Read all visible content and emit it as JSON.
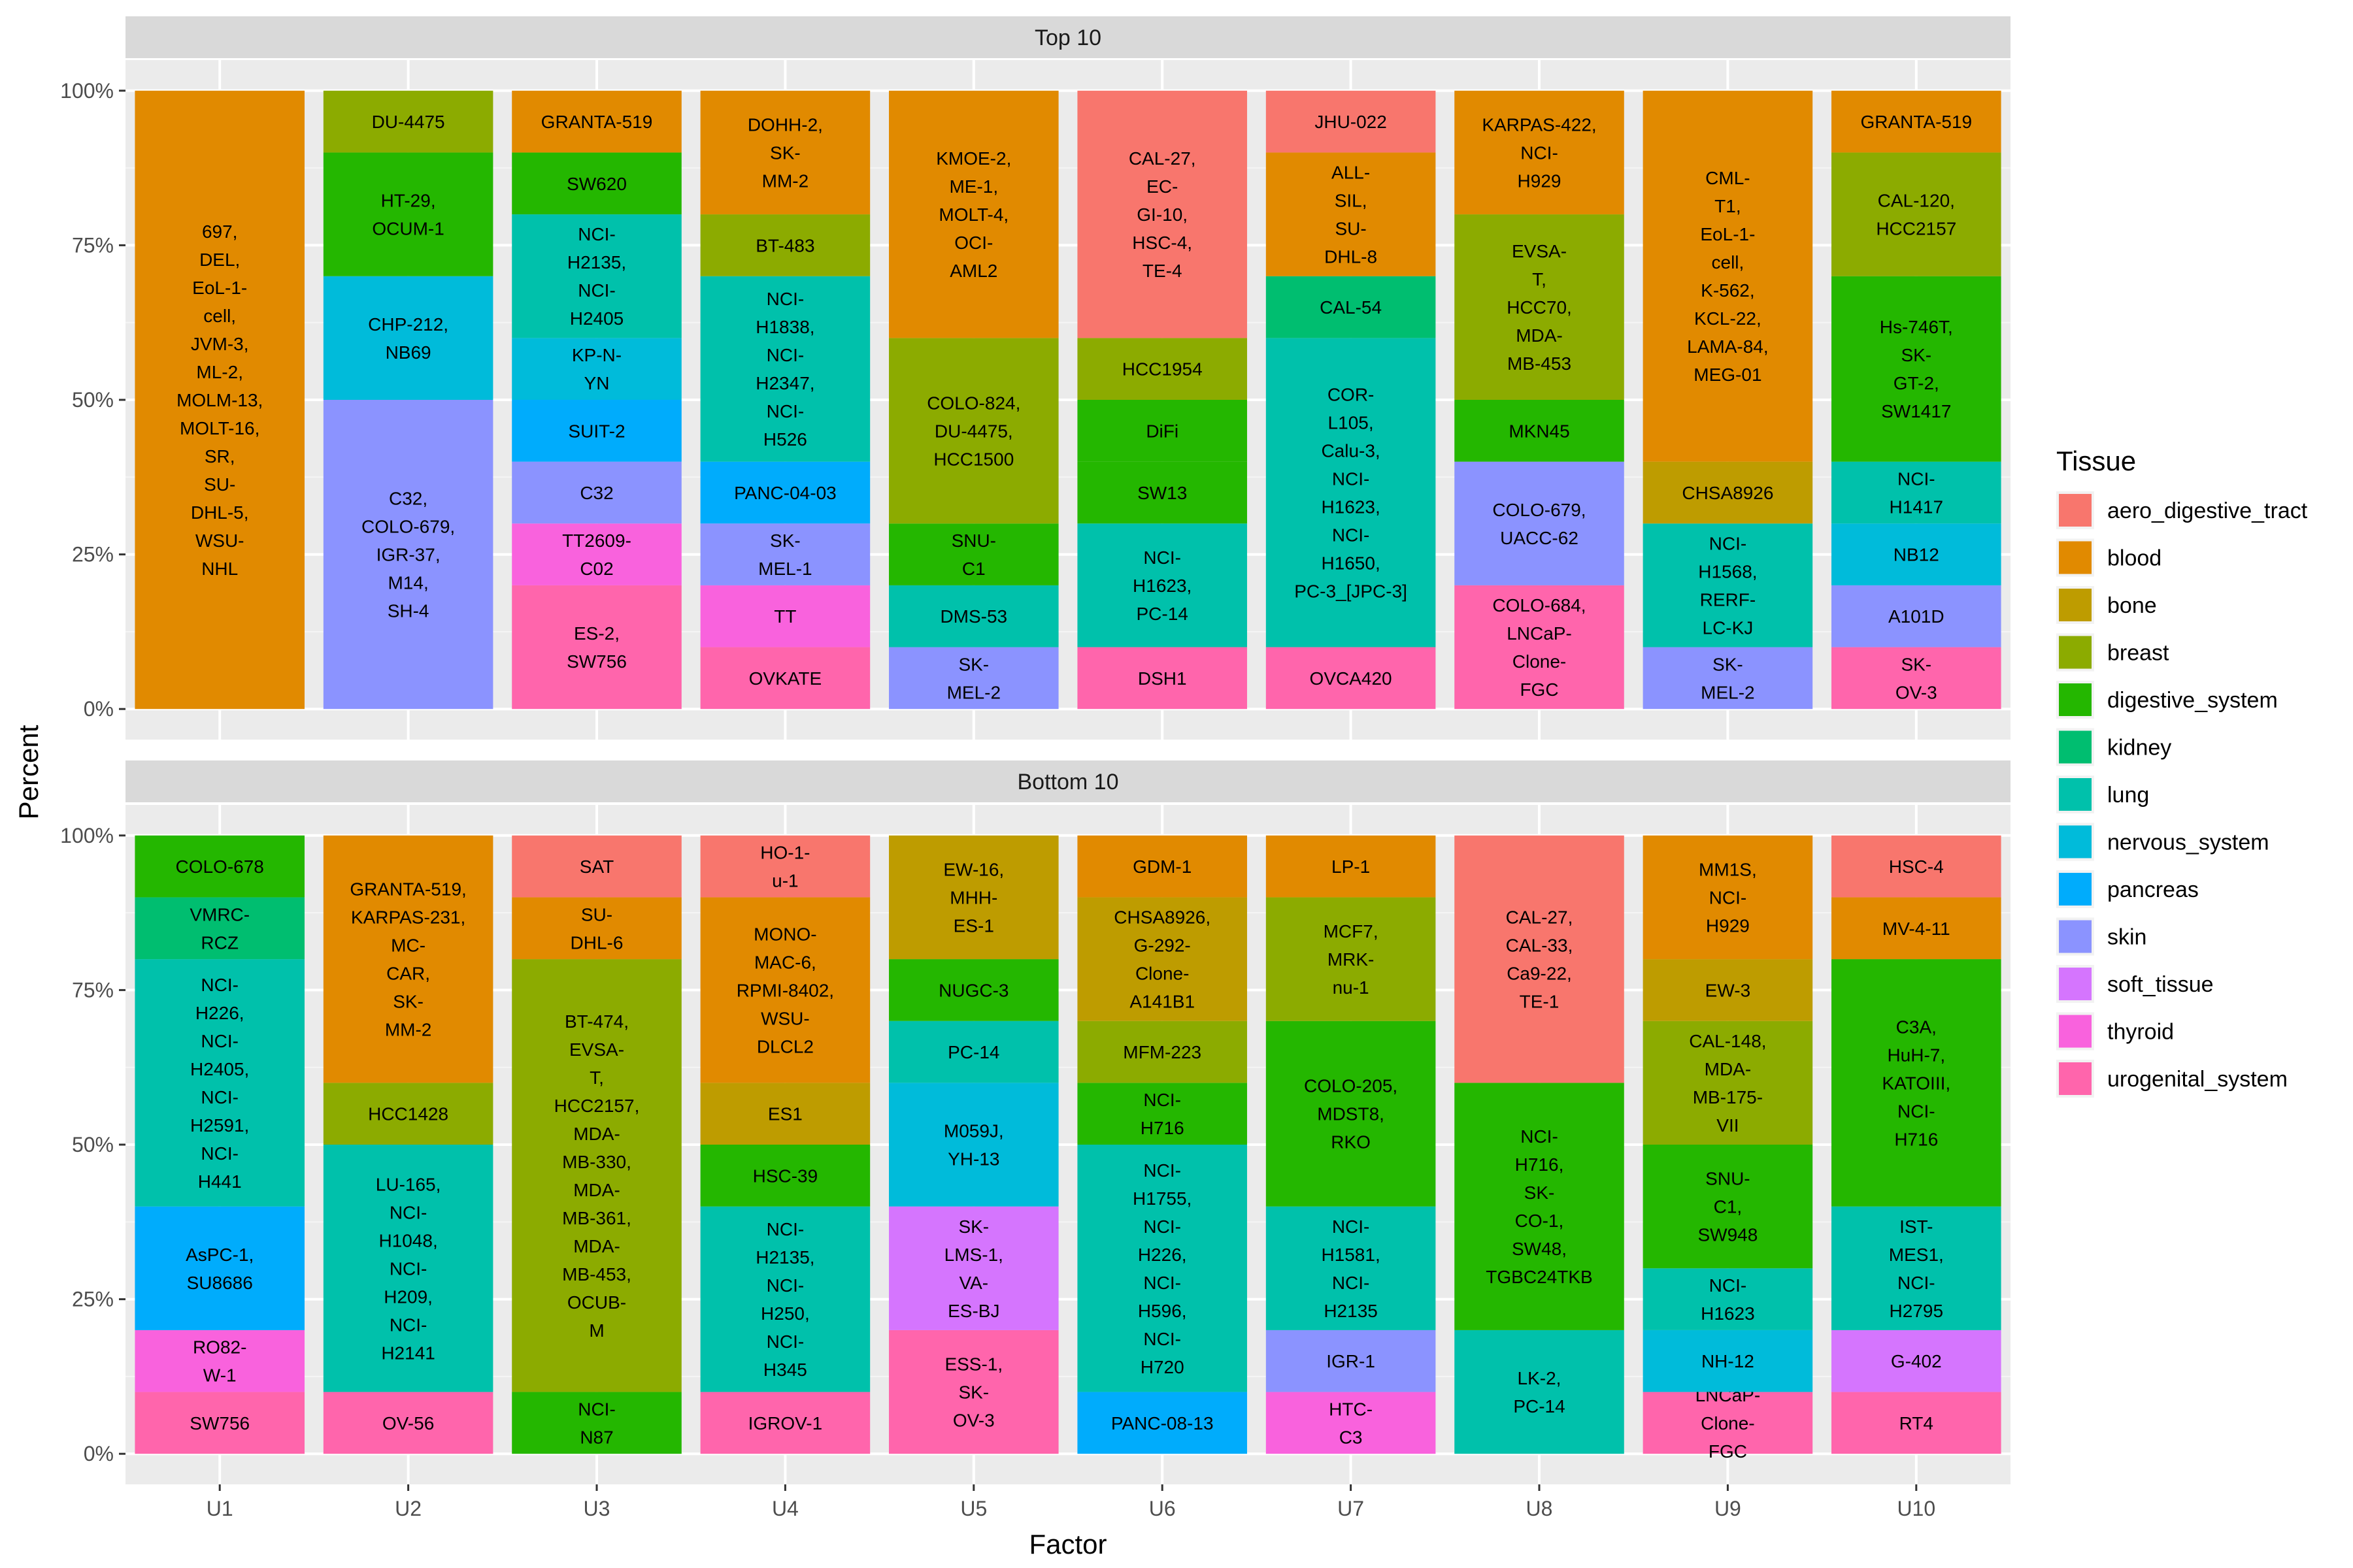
{
  "chart_data": {
    "type": "bar",
    "stacked": true,
    "xlabel": "Factor",
    "ylabel": "Percent",
    "ylim": [
      0,
      100
    ],
    "y_ticks": [
      0,
      25,
      50,
      75,
      100
    ],
    "y_tick_labels": [
      "0%",
      "25%",
      "50%",
      "75%",
      "100%"
    ],
    "categories": [
      "U1",
      "U2",
      "U3",
      "U4",
      "U5",
      "U6",
      "U7",
      "U8",
      "U9",
      "U10"
    ],
    "legend": {
      "title": "Tissue",
      "position": "right",
      "entries": [
        {
          "name": "aero_digestive_tract",
          "color": "#F8766D"
        },
        {
          "name": "blood",
          "color": "#E18A00"
        },
        {
          "name": "bone",
          "color": "#BE9C00"
        },
        {
          "name": "breast",
          "color": "#8CAB00"
        },
        {
          "name": "digestive_system",
          "color": "#24B700"
        },
        {
          "name": "kidney",
          "color": "#00BE70"
        },
        {
          "name": "lung",
          "color": "#00C1AB"
        },
        {
          "name": "nervous_system",
          "color": "#00BBDA"
        },
        {
          "name": "pancreas",
          "color": "#00ACFC"
        },
        {
          "name": "skin",
          "color": "#8B93FF"
        },
        {
          "name": "soft_tissue",
          "color": "#D575FE"
        },
        {
          "name": "thyroid",
          "color": "#F962DD"
        },
        {
          "name": "urogenital_system",
          "color": "#FF65AC"
        }
      ]
    },
    "panels": [
      {
        "title": "Top 10",
        "bars": [
          {
            "category": "U1",
            "segments": [
              {
                "tissue": "blood",
                "value": 100,
                "label": "697,\nDEL,\nEoL-1-\ncell,\nJVM-3,\nML-2,\nMOLM-13,\nMOLT-16,\nSR,\nSU-\nDHL-5,\nWSU-\nNHL"
              }
            ]
          },
          {
            "category": "U2",
            "segments": [
              {
                "tissue": "skin",
                "value": 50,
                "label": "C32,\nCOLO-679,\nIGR-37,\nM14,\nSH-4"
              },
              {
                "tissue": "nervous_system",
                "value": 20,
                "label": "CHP-212,\nNB69"
              },
              {
                "tissue": "digestive_system",
                "value": 20,
                "label": "HT-29,\nOCUM-1"
              },
              {
                "tissue": "breast",
                "value": 10,
                "label": "DU-4475"
              }
            ]
          },
          {
            "category": "U3",
            "segments": [
              {
                "tissue": "urogenital_system",
                "value": 20,
                "label": "ES-2,\nSW756"
              },
              {
                "tissue": "thyroid",
                "value": 10,
                "label": "TT2609-\nC02"
              },
              {
                "tissue": "skin",
                "value": 10,
                "label": "C32"
              },
              {
                "tissue": "pancreas",
                "value": 10,
                "label": "SUIT-2"
              },
              {
                "tissue": "nervous_system",
                "value": 10,
                "label": "KP-N-\nYN"
              },
              {
                "tissue": "lung",
                "value": 20,
                "label": "NCI-\nH2135,\nNCI-\nH2405"
              },
              {
                "tissue": "digestive_system",
                "value": 10,
                "label": "SW620"
              },
              {
                "tissue": "blood",
                "value": 10,
                "label": "GRANTA-519"
              }
            ]
          },
          {
            "category": "U4",
            "segments": [
              {
                "tissue": "urogenital_system",
                "value": 10,
                "label": "OVKATE"
              },
              {
                "tissue": "thyroid",
                "value": 10,
                "label": "TT"
              },
              {
                "tissue": "skin",
                "value": 10,
                "label": "SK-\nMEL-1"
              },
              {
                "tissue": "pancreas",
                "value": 10,
                "label": "PANC-04-03"
              },
              {
                "tissue": "lung",
                "value": 30,
                "label": "NCI-\nH1838,\nNCI-\nH2347,\nNCI-\nH526"
              },
              {
                "tissue": "breast",
                "value": 10,
                "label": "BT-483"
              },
              {
                "tissue": "blood",
                "value": 20,
                "label": "DOHH-2,\nSK-\nMM-2"
              }
            ]
          },
          {
            "category": "U5",
            "segments": [
              {
                "tissue": "skin",
                "value": 10,
                "label": "SK-\nMEL-2"
              },
              {
                "tissue": "lung",
                "value": 10,
                "label": "DMS-53"
              },
              {
                "tissue": "digestive_system",
                "value": 10,
                "label": "SNU-\nC1"
              },
              {
                "tissue": "breast",
                "value": 30,
                "label": "COLO-824,\nDU-4475,\nHCC1500"
              },
              {
                "tissue": "blood",
                "value": 40,
                "label": "KMOE-2,\nME-1,\nMOLT-4,\nOCI-\nAML2"
              }
            ]
          },
          {
            "category": "U6",
            "segments": [
              {
                "tissue": "urogenital_system",
                "value": 10,
                "label": "DSH1"
              },
              {
                "tissue": "lung",
                "value": 20,
                "label": "NCI-\nH1623,\nPC-14"
              },
              {
                "tissue": "digestive_system",
                "value": 10,
                "label": "SW13"
              },
              {
                "tissue": "digestive_system",
                "value": 10,
                "label": "DiFi"
              },
              {
                "tissue": "breast",
                "value": 10,
                "label": "HCC1954"
              },
              {
                "tissue": "aero_digestive_tract",
                "value": 40,
                "label": "CAL-27,\nEC-\nGI-10,\nHSC-4,\nTE-4"
              }
            ]
          },
          {
            "category": "U7",
            "segments": [
              {
                "tissue": "urogenital_system",
                "value": 10,
                "label": "OVCA420"
              },
              {
                "tissue": "lung",
                "value": 50,
                "label": "COR-\nL105,\nCalu-3,\nNCI-\nH1623,\nNCI-\nH1650,\nPC-3_[JPC-3]"
              },
              {
                "tissue": "kidney",
                "value": 10,
                "label": "CAL-54"
              },
              {
                "tissue": "blood",
                "value": 20,
                "label": "ALL-\nSIL,\nSU-\nDHL-8"
              },
              {
                "tissue": "aero_digestive_tract",
                "value": 10,
                "label": "JHU-022"
              }
            ]
          },
          {
            "category": "U8",
            "segments": [
              {
                "tissue": "urogenital_system",
                "value": 20,
                "label": "COLO-684,\nLNCaP-\nClone-\nFGC"
              },
              {
                "tissue": "skin",
                "value": 20,
                "label": "COLO-679,\nUACC-62"
              },
              {
                "tissue": "digestive_system",
                "value": 10,
                "label": "MKN45"
              },
              {
                "tissue": "breast",
                "value": 30,
                "label": "EVSA-\nT,\nHCC70,\nMDA-\nMB-453"
              },
              {
                "tissue": "blood",
                "value": 20,
                "label": "KARPAS-422,\nNCI-\nH929"
              }
            ]
          },
          {
            "category": "U9",
            "segments": [
              {
                "tissue": "skin",
                "value": 10,
                "label": "SK-\nMEL-2"
              },
              {
                "tissue": "lung",
                "value": 20,
                "label": "NCI-\nH1568,\nRERF-\nLC-KJ"
              },
              {
                "tissue": "bone",
                "value": 10,
                "label": "CHSA8926"
              },
              {
                "tissue": "blood",
                "value": 60,
                "label": "CML-\nT1,\nEoL-1-\ncell,\nK-562,\nKCL-22,\nLAMA-84,\nMEG-01"
              }
            ]
          },
          {
            "category": "U10",
            "segments": [
              {
                "tissue": "urogenital_system",
                "value": 10,
                "label": "SK-\nOV-3"
              },
              {
                "tissue": "skin",
                "value": 10,
                "label": "A101D"
              },
              {
                "tissue": "nervous_system",
                "value": 10,
                "label": "NB12"
              },
              {
                "tissue": "lung",
                "value": 10,
                "label": "NCI-\nH1417"
              },
              {
                "tissue": "digestive_system",
                "value": 30,
                "label": "Hs-746T,\nSK-\nGT-2,\nSW1417"
              },
              {
                "tissue": "breast",
                "value": 20,
                "label": "CAL-120,\nHCC2157"
              },
              {
                "tissue": "blood",
                "value": 10,
                "label": "GRANTA-519"
              }
            ]
          }
        ]
      },
      {
        "title": "Bottom 10",
        "bars": [
          {
            "category": "U1",
            "segments": [
              {
                "tissue": "urogenital_system",
                "value": 10,
                "label": "SW756"
              },
              {
                "tissue": "thyroid",
                "value": 10,
                "label": "RO82-\nW-1"
              },
              {
                "tissue": "pancreas",
                "value": 20,
                "label": "AsPC-1,\nSU8686"
              },
              {
                "tissue": "lung",
                "value": 40,
                "label": "NCI-\nH226,\nNCI-\nH2405,\nNCI-\nH2591,\nNCI-\nH441"
              },
              {
                "tissue": "kidney",
                "value": 10,
                "label": "VMRC-\nRCZ"
              },
              {
                "tissue": "digestive_system",
                "value": 10,
                "label": "COLO-678"
              }
            ]
          },
          {
            "category": "U2",
            "segments": [
              {
                "tissue": "urogenital_system",
                "value": 10,
                "label": "OV-56"
              },
              {
                "tissue": "lung",
                "value": 40,
                "label": "LU-165,\nNCI-\nH1048,\nNCI-\nH209,\nNCI-\nH2141"
              },
              {
                "tissue": "breast",
                "value": 10,
                "label": "HCC1428"
              },
              {
                "tissue": "blood",
                "value": 40,
                "label": "GRANTA-519,\nKARPAS-231,\nMC-\nCAR,\nSK-\nMM-2"
              }
            ]
          },
          {
            "category": "U3",
            "segments": [
              {
                "tissue": "digestive_system",
                "value": 10,
                "label": "NCI-\nN87"
              },
              {
                "tissue": "breast",
                "value": 70,
                "label": "BT-474,\nEVSA-\nT,\nHCC2157,\nMDA-\nMB-330,\nMDA-\nMB-361,\nMDA-\nMB-453,\nOCUB-\nM"
              },
              {
                "tissue": "blood",
                "value": 10,
                "label": "SU-\nDHL-6"
              },
              {
                "tissue": "aero_digestive_tract",
                "value": 10,
                "label": "SAT"
              }
            ]
          },
          {
            "category": "U4",
            "segments": [
              {
                "tissue": "urogenital_system",
                "value": 10,
                "label": "IGROV-1"
              },
              {
                "tissue": "lung",
                "value": 30,
                "label": "NCI-\nH2135,\nNCI-\nH250,\nNCI-\nH345"
              },
              {
                "tissue": "digestive_system",
                "value": 10,
                "label": "HSC-39"
              },
              {
                "tissue": "bone",
                "value": 10,
                "label": "ES1"
              },
              {
                "tissue": "blood",
                "value": 30,
                "label": "MONO-\nMAC-6,\nRPMI-8402,\nWSU-\nDLCL2"
              },
              {
                "tissue": "aero_digestive_tract",
                "value": 10,
                "label": "HO-1-\nu-1"
              }
            ]
          },
          {
            "category": "U5",
            "segments": [
              {
                "tissue": "urogenital_system",
                "value": 20,
                "label": "ESS-1,\nSK-\nOV-3"
              },
              {
                "tissue": "soft_tissue",
                "value": 20,
                "label": "SK-\nLMS-1,\nVA-\nES-BJ"
              },
              {
                "tissue": "nervous_system",
                "value": 20,
                "label": "M059J,\nYH-13"
              },
              {
                "tissue": "lung",
                "value": 10,
                "label": "PC-14"
              },
              {
                "tissue": "digestive_system",
                "value": 10,
                "label": "NUGC-3"
              },
              {
                "tissue": "bone",
                "value": 20,
                "label": "EW-16,\nMHH-\nES-1"
              }
            ]
          },
          {
            "category": "U6",
            "segments": [
              {
                "tissue": "pancreas",
                "value": 10,
                "label": "PANC-08-13"
              },
              {
                "tissue": "lung",
                "value": 40,
                "label": "NCI-\nH1755,\nNCI-\nH226,\nNCI-\nH596,\nNCI-\nH720"
              },
              {
                "tissue": "digestive_system",
                "value": 10,
                "label": "NCI-\nH716"
              },
              {
                "tissue": "breast",
                "value": 10,
                "label": "MFM-223"
              },
              {
                "tissue": "bone",
                "value": 20,
                "label": "CHSA8926,\nG-292-\nClone-\nA141B1"
              },
              {
                "tissue": "blood",
                "value": 10,
                "label": "GDM-1"
              }
            ]
          },
          {
            "category": "U7",
            "segments": [
              {
                "tissue": "thyroid",
                "value": 10,
                "label": "HTC-\nC3"
              },
              {
                "tissue": "skin",
                "value": 10,
                "label": "IGR-1"
              },
              {
                "tissue": "lung",
                "value": 20,
                "label": "NCI-\nH1581,\nNCI-\nH2135"
              },
              {
                "tissue": "digestive_system",
                "value": 30,
                "label": "COLO-205,\nMDST8,\nRKO"
              },
              {
                "tissue": "breast",
                "value": 20,
                "label": "MCF7,\nMRK-\nnu-1"
              },
              {
                "tissue": "blood",
                "value": 10,
                "label": "LP-1"
              }
            ]
          },
          {
            "category": "U8",
            "segments": [
              {
                "tissue": "lung",
                "value": 20,
                "label": "LK-2,\nPC-14"
              },
              {
                "tissue": "digestive_system",
                "value": 40,
                "label": "NCI-\nH716,\nSK-\nCO-1,\nSW48,\nTGBC24TKB"
              },
              {
                "tissue": "aero_digestive_tract",
                "value": 40,
                "label": "CAL-27,\nCAL-33,\nCa9-22,\nTE-1"
              }
            ]
          },
          {
            "category": "U9",
            "segments": [
              {
                "tissue": "urogenital_system",
                "value": 10,
                "label": "LNCaP-\nClone-\nFGC"
              },
              {
                "tissue": "nervous_system",
                "value": 10,
                "label": "NH-12"
              },
              {
                "tissue": "lung",
                "value": 10,
                "label": "NCI-\nH1623"
              },
              {
                "tissue": "digestive_system",
                "value": 20,
                "label": "SNU-\nC1,\nSW948"
              },
              {
                "tissue": "breast",
                "value": 20,
                "label": "CAL-148,\nMDA-\nMB-175-\nVII"
              },
              {
                "tissue": "bone",
                "value": 10,
                "label": "EW-3"
              },
              {
                "tissue": "blood",
                "value": 20,
                "label": "MM1S,\nNCI-\nH929"
              }
            ]
          },
          {
            "category": "U10",
            "segments": [
              {
                "tissue": "urogenital_system",
                "value": 10,
                "label": "RT4"
              },
              {
                "tissue": "soft_tissue",
                "value": 10,
                "label": "G-402"
              },
              {
                "tissue": "lung",
                "value": 20,
                "label": "IST-\nMES1,\nNCI-\nH2795"
              },
              {
                "tissue": "digestive_system",
                "value": 40,
                "label": "C3A,\nHuH-7,\nKATOIII,\nNCI-\nH716"
              },
              {
                "tissue": "blood",
                "value": 10,
                "label": "MV-4-11"
              },
              {
                "tissue": "aero_digestive_tract",
                "value": 10,
                "label": "HSC-4"
              }
            ]
          }
        ]
      }
    ]
  }
}
